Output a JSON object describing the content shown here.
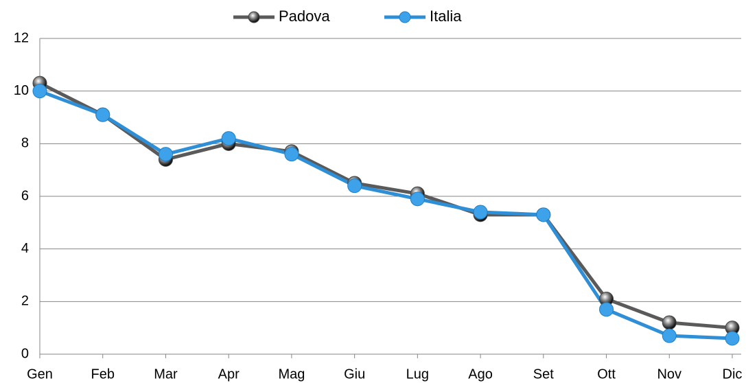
{
  "chart_data": {
    "type": "line",
    "categories": [
      "Gen",
      "Feb",
      "Mar",
      "Apr",
      "Mag",
      "Giu",
      "Lug",
      "Ago",
      "Set",
      "Ott",
      "Nov",
      "Dic"
    ],
    "series": [
      {
        "name": "Padova",
        "color": "#5a5a5a",
        "values": [
          10.3,
          9.1,
          7.4,
          8.0,
          7.7,
          6.5,
          6.1,
          5.3,
          5.3,
          2.1,
          1.2,
          1.0
        ]
      },
      {
        "name": "Italia",
        "color": "#2f8fd6",
        "values": [
          10.0,
          9.1,
          7.6,
          8.2,
          7.6,
          6.4,
          5.9,
          5.4,
          5.3,
          1.7,
          0.7,
          0.6
        ]
      }
    ],
    "ylim": [
      0,
      12
    ],
    "yticks": [
      0,
      2,
      4,
      6,
      8,
      10,
      12
    ],
    "grid": true,
    "legend": "top"
  }
}
